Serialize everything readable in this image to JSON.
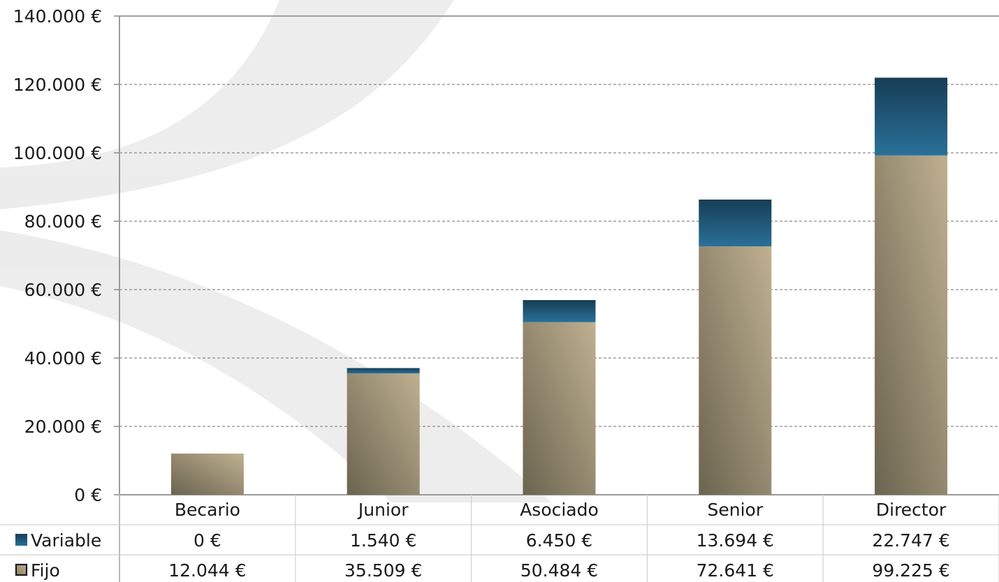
{
  "chart_data": {
    "type": "bar",
    "stacked": true,
    "categories": [
      "Becario",
      "Junior",
      "Asociado",
      "Senior",
      "Director"
    ],
    "series": [
      {
        "name": "Fijo",
        "values": [
          12044,
          35509,
          50484,
          72641,
          99225
        ],
        "labels": [
          "12.044 €",
          "35.509 €",
          "50.484 €",
          "72.641 €",
          "99.225 €"
        ],
        "color": "#a49878"
      },
      {
        "name": "Variable",
        "values": [
          0,
          1540,
          6450,
          13694,
          22747
        ],
        "labels": [
          "0 €",
          "1.540 €",
          "6.450 €",
          "13.694 €",
          "22.747 €"
        ],
        "color": "#1f5f85"
      }
    ],
    "ylim": [
      0,
      140000
    ],
    "yticks": [
      0,
      20000,
      40000,
      60000,
      80000,
      100000,
      120000,
      140000
    ],
    "ytick_labels": [
      "0 €",
      "20.000 €",
      "40.000 €",
      "60.000 €",
      "80.000 €",
      "100.000 €",
      "120.000 €",
      "140.000 €"
    ],
    "grid": true,
    "legend": "data-table-below",
    "table_row_order": [
      "Variable",
      "Fijo"
    ]
  }
}
